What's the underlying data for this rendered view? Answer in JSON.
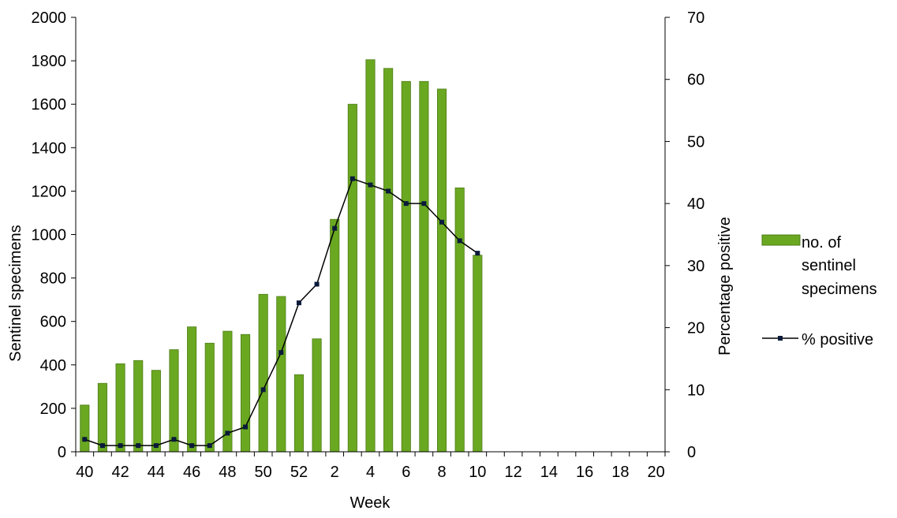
{
  "chart_data": {
    "type": "bar+line",
    "categories": [
      "40",
      "41",
      "42",
      "43",
      "44",
      "45",
      "46",
      "47",
      "48",
      "49",
      "50",
      "51",
      "52",
      "53",
      "2",
      "3",
      "4",
      "5",
      "6",
      "7",
      "8",
      "9",
      "10",
      "11",
      "12",
      "13",
      "14",
      "15",
      "16",
      "17",
      "18",
      "19",
      "20"
    ],
    "x_tick_labels": [
      "40",
      "42",
      "44",
      "46",
      "48",
      "50",
      "52",
      "2",
      "4",
      "6",
      "8",
      "10",
      "12",
      "14",
      "16",
      "18",
      "20"
    ],
    "xlabel": "Week",
    "ylabel_left": "Sentinel specimens",
    "ylabel_right": "Percentage positive",
    "ylim_left": [
      0,
      2000
    ],
    "ylim_right": [
      0,
      70
    ],
    "y_ticks_left": [
      "0",
      "200",
      "400",
      "600",
      "800",
      "1000",
      "1200",
      "1400",
      "1600",
      "1800",
      "2000"
    ],
    "y_ticks_right": [
      "0",
      "10",
      "20",
      "30",
      "40",
      "50",
      "60",
      "70"
    ],
    "grid": false,
    "legend_position": "right",
    "series": [
      {
        "name": "no. of sentinel specimens",
        "type": "bar",
        "axis": "left",
        "color": "#6aa821",
        "values": [
          215,
          315,
          405,
          420,
          375,
          470,
          575,
          500,
          555,
          540,
          725,
          715,
          355,
          520,
          1070,
          1600,
          1805,
          1765,
          1705,
          1705,
          1670,
          1215,
          905,
          null,
          null,
          null,
          null,
          null,
          null,
          null,
          null,
          null,
          null
        ]
      },
      {
        "name": "% positive",
        "type": "line",
        "axis": "right",
        "color": "#0a1a3a",
        "values": [
          2,
          1,
          1,
          1,
          1,
          2,
          1,
          1,
          3,
          4,
          10,
          16,
          24,
          27,
          36,
          44,
          43,
          42,
          40,
          40,
          37,
          34,
          32,
          null,
          null,
          null,
          null,
          null,
          null,
          null,
          null,
          null,
          null
        ]
      }
    ],
    "legend": {
      "bar_label_lines": [
        "no. of",
        "sentinel",
        "specimens"
      ],
      "line_label": "% positive"
    }
  }
}
